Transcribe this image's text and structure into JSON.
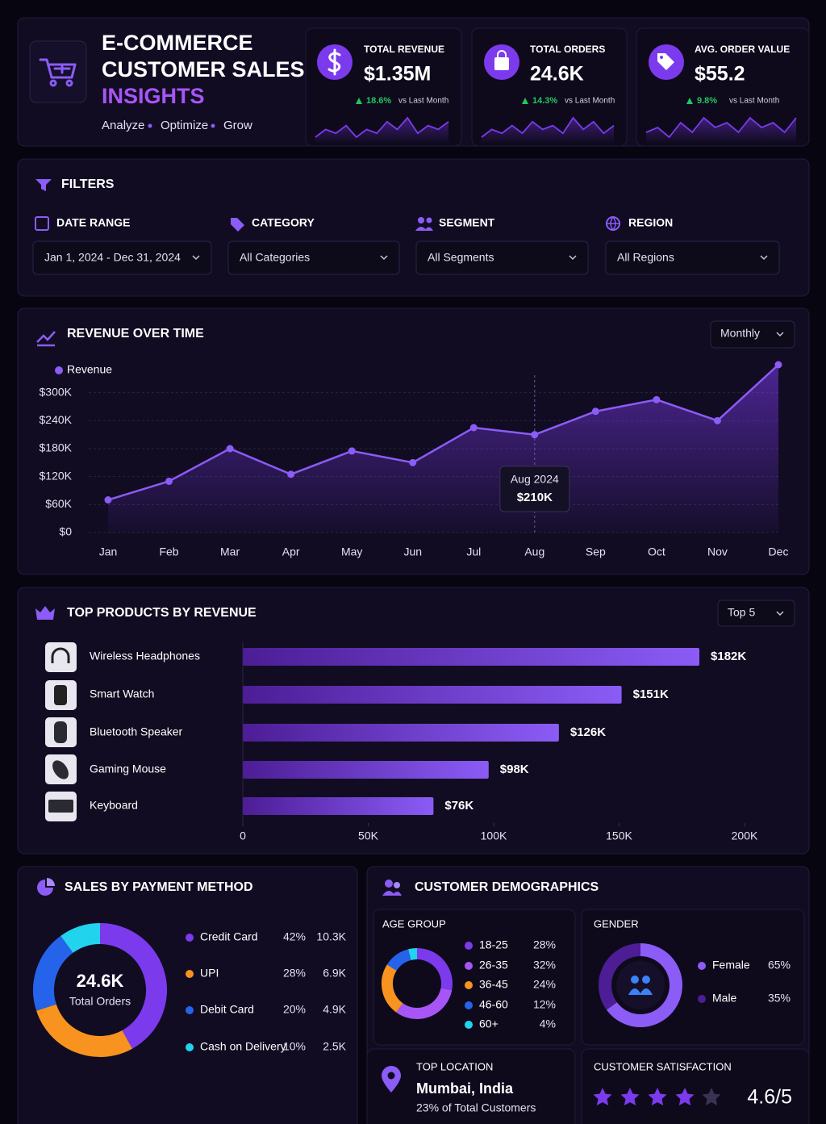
{
  "header": {
    "title_lines": [
      "E-COMMERCE",
      "CUSTOMER SALES"
    ],
    "highlight": "INSIGHTS",
    "tagline": [
      "Analyze",
      "Optimize",
      "Grow"
    ]
  },
  "kpis": [
    {
      "label": "TOTAL REVENUE",
      "value": "$1.35M",
      "change": "18.6%",
      "compare": "vs Last Month",
      "trend": [
        3,
        5,
        4,
        6,
        3,
        5,
        4,
        7,
        5,
        8,
        4,
        6,
        5,
        7
      ]
    },
    {
      "label": "TOTAL ORDERS",
      "value": "24.6K",
      "change": "14.3%",
      "compare": "vs Last Month",
      "trend": [
        2,
        4,
        3,
        5,
        3,
        6,
        4,
        5,
        3,
        7,
        4,
        6,
        3,
        5
      ]
    },
    {
      "label": "AVG. ORDER VALUE",
      "value": "$55.2",
      "change": "9.8%",
      "compare": "vs Last Month",
      "trend": [
        3,
        4,
        2,
        5,
        3,
        6,
        4,
        5,
        3,
        6,
        4,
        5,
        3,
        6
      ]
    }
  ],
  "filters": {
    "title": "FILTERS",
    "items": [
      {
        "label": "DATE RANGE",
        "value": "Jan 1, 2024 - Dec 31, 2024"
      },
      {
        "label": "CATEGORY",
        "value": "All Categories"
      },
      {
        "label": "SEGMENT",
        "value": "All Segments"
      },
      {
        "label": "REGION",
        "value": "All Regions"
      }
    ]
  },
  "chart_data": [
    {
      "type": "line",
      "title": "REVENUE OVER TIME",
      "selector": "Monthly",
      "categories": [
        "Jan",
        "Feb",
        "Mar",
        "Apr",
        "May",
        "Jun",
        "Jul",
        "Aug",
        "Sep",
        "Oct",
        "Nov",
        "Dec"
      ],
      "series": [
        {
          "name": "Revenue",
          "color": "#8b5cf6",
          "values": [
            70000,
            110000,
            180000,
            125000,
            175000,
            150000,
            225000,
            210000,
            260000,
            285000,
            240000,
            360000
          ]
        }
      ],
      "ylim": [
        0,
        360000
      ],
      "yticks": [
        {
          "value": 0,
          "label": "$0"
        },
        {
          "value": 60000,
          "label": "$60K"
        },
        {
          "value": 120000,
          "label": "$120K"
        },
        {
          "value": 180000,
          "label": "$180K"
        },
        {
          "value": 240000,
          "label": "$240K"
        },
        {
          "value": 300000,
          "label": "$300K"
        }
      ],
      "grid": true,
      "tooltip": {
        "title": "Aug 2024",
        "value": "$210K",
        "index": 7
      }
    },
    {
      "type": "bar",
      "orientation": "horizontal",
      "title": "TOP PRODUCTS BY REVENUE",
      "selector": "Top 5",
      "categories": [
        "Wireless Headphones",
        "Smart Watch",
        "Bluetooth Speaker",
        "Gaming Mouse",
        "Keyboard"
      ],
      "values": [
        182000,
        151000,
        126000,
        98000,
        76000
      ],
      "value_labels": [
        "$182K",
        "$151K",
        "$126K",
        "$98K",
        "$76K"
      ],
      "color": "#7c3aed",
      "xlim": [
        0,
        200000
      ],
      "xticks": [
        0,
        {
          "value": 50000,
          "label": "50K"
        },
        {
          "value": 100000,
          "label": "100K"
        },
        {
          "value": 150000,
          "label": "150K"
        },
        {
          "value": 200000,
          "label": "200K"
        }
      ]
    },
    {
      "type": "donut",
      "title": "SALES BY PAYMENT METHOD",
      "categories": [
        "Credit Card",
        "UPI",
        "Debit Card",
        "Cash on Delivery"
      ],
      "values": [
        42,
        28,
        20,
        10
      ],
      "value_labels": [
        "42%",
        "28%",
        "20%",
        "10%"
      ],
      "orders": [
        "10.3K",
        "6.9K",
        "4.9K",
        "2.5K"
      ],
      "colors": [
        "#7c3aed",
        "#f7931e",
        "#2563eb",
        "#22d3ee"
      ],
      "center_value": "24.6K",
      "center_label": "Total Orders"
    },
    {
      "type": "donut",
      "title": "AGE GROUP",
      "group": "CUSTOMER DEMOGRAPHICS",
      "categories": [
        "18-25",
        "26-35",
        "36-45",
        "46-60",
        "60+"
      ],
      "values": [
        28,
        32,
        24,
        12,
        4
      ],
      "value_labels": [
        "28%",
        "32%",
        "24%",
        "12%",
        "4%"
      ],
      "colors": [
        "#7c3aed",
        "#a855f7",
        "#f7931e",
        "#2563eb",
        "#22d3ee"
      ]
    },
    {
      "type": "donut",
      "title": "GENDER",
      "categories": [
        "Female",
        "Male"
      ],
      "values": [
        65,
        35
      ],
      "value_labels": [
        "65%",
        "35%"
      ],
      "colors": [
        "#8b5cf6",
        "#4c1d95"
      ]
    }
  ],
  "top_location": {
    "title": "TOP LOCATION",
    "city": "Mumbai, India",
    "note": "23% of Total Customers"
  },
  "satisfaction": {
    "title": "CUSTOMER SATISFACTION",
    "score": "4.6/5"
  }
}
